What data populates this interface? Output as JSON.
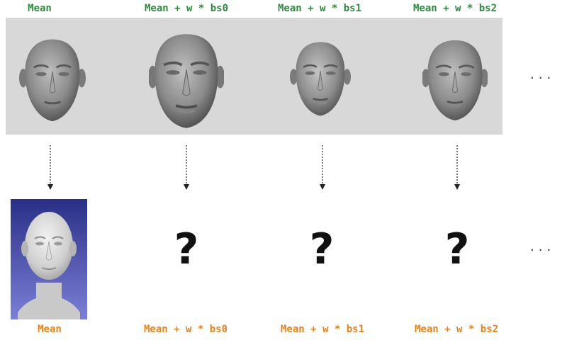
{
  "top_row": {
    "labels": [
      "Mean",
      "Mean + w * bs0",
      "Mean + w * bs1",
      "Mean + w * bs2"
    ],
    "label_color": "#2e8b3e"
  },
  "bottom_row": {
    "labels": [
      "Mean",
      "Mean + w * bs0",
      "Mean + w * bs1",
      "Mean + w * bs2"
    ],
    "label_color": "#e6821e",
    "unknown_mark": "?"
  },
  "ellipsis": "...",
  "icons": {
    "face_mesh": "face-mesh-icon",
    "arrow": "dotted-down-arrow-icon",
    "rendered": "rendered-face-icon"
  },
  "colors": {
    "band_background": "#d8d8d8",
    "panel_gradient_top": "#2a2f86",
    "panel_gradient_bottom": "#7c7fd6"
  }
}
